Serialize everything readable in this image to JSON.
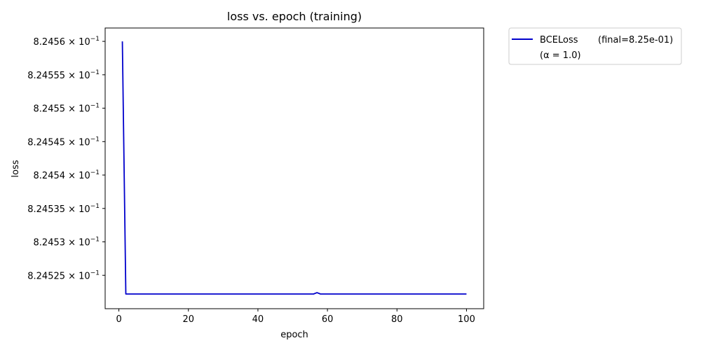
{
  "chart_data": {
    "type": "line",
    "title": "loss vs. epoch (training)",
    "xlabel": "epoch",
    "ylabel": "loss",
    "xlim": [
      -3.95,
      104.95
    ],
    "ylim": [
      0.82452,
      0.824562
    ],
    "yscale": "log",
    "grid": false,
    "legend_placement": "outside-upper-right",
    "x_ticks": [
      0,
      20,
      40,
      60,
      80,
      100
    ],
    "x_tick_labels": [
      "0",
      "20",
      "40",
      "60",
      "80",
      "100"
    ],
    "y_ticks": [
      {
        "value": 0.82456,
        "mantissa": "8.2456",
        "base": "10",
        "exp": "−1"
      },
      {
        "value": 0.824555,
        "mantissa": "8.24555",
        "base": "10",
        "exp": "−1"
      },
      {
        "value": 0.82455,
        "mantissa": "8.2455",
        "base": "10",
        "exp": "−1"
      },
      {
        "value": 0.824545,
        "mantissa": "8.24545",
        "base": "10",
        "exp": "−1"
      },
      {
        "value": 0.82454,
        "mantissa": "8.2454",
        "base": "10",
        "exp": "−1"
      },
      {
        "value": 0.824535,
        "mantissa": "8.24535",
        "base": "10",
        "exp": "−1"
      },
      {
        "value": 0.82453,
        "mantissa": "8.2453",
        "base": "10",
        "exp": "−1"
      },
      {
        "value": 0.824525,
        "mantissa": "8.24525",
        "base": "10",
        "exp": "−1"
      }
    ],
    "series": [
      {
        "name": "BCELoss",
        "legend_suffix": "(final=8.25e-01)",
        "legend_line2": "(α = 1.0)",
        "color": "#0000cc",
        "x": [
          1,
          2,
          56,
          57,
          58,
          100
        ],
        "y": [
          0.82456,
          0.8245222,
          0.8245222,
          0.8245224,
          0.8245222,
          0.8245222
        ]
      }
    ]
  }
}
